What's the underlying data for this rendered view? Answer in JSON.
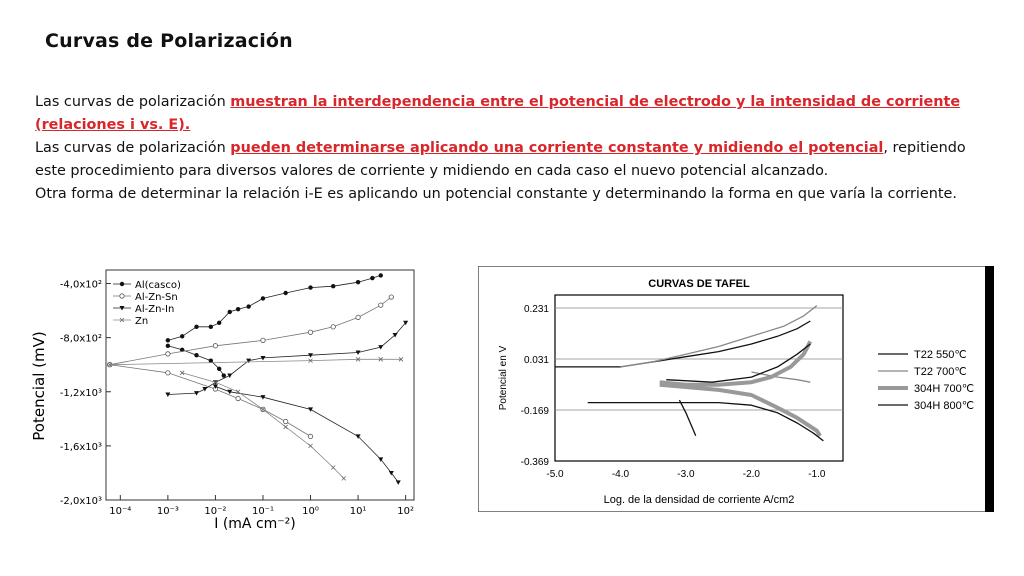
{
  "title": "Curvas de Polarización",
  "paragraph1": {
    "pre": "Las curvas de polarización ",
    "highlight": "muestran la interdependencia entre el potencial de electrodo y la intensidad de corriente (relaciones i vs. E)."
  },
  "paragraph2": {
    "highlight_space": " ",
    "pre": "Las curvas de polarización ",
    "highlight": "pueden determinarse aplicando una corriente constante y midiendo el potencial",
    "post": ", repitiendo este procedimiento para diversos valores de corriente y midiendo en cada caso el nuevo potencial alcanzado."
  },
  "paragraph3": "Otra forma de determinar la relación i-E es aplicando un potencial constante y determinando la forma en que varía la corriente.",
  "chart_data": [
    {
      "type": "line",
      "title": "",
      "xlabel": "I (mA cm⁻²)",
      "ylabel": "Potencial (mV)",
      "x_scale": "log",
      "xlim": [
        5e-05,
        150
      ],
      "ylim": [
        -2000,
        -300
      ],
      "x_ticks": [
        "10⁻⁴",
        "10⁻³",
        "10⁻²",
        "10⁻¹",
        "10⁰",
        "10¹",
        "10²"
      ],
      "y_ticks": [
        "-4,0x10²",
        "-8,0x10²",
        "-1,2x10³",
        "-1,6x10³",
        "-2,0x10³"
      ],
      "legend_position": "top-left",
      "series": [
        {
          "name": "Al(casco)",
          "marker": "filled-circle",
          "points": [
            [
              0.001,
              -820
            ],
            [
              0.002,
              -790
            ],
            [
              0.004,
              -720
            ],
            [
              0.008,
              -720
            ],
            [
              0.012,
              -690
            ],
            [
              0.02,
              -610
            ],
            [
              0.03,
              -590
            ],
            [
              0.05,
              -570
            ],
            [
              0.1,
              -510
            ],
            [
              0.3,
              -470
            ],
            [
              1,
              -430
            ],
            [
              3,
              -420
            ],
            [
              10,
              -390
            ],
            [
              20,
              -360
            ],
            [
              30,
              -340
            ]
          ],
          "cathodic": [
            [
              0.001,
              -860
            ],
            [
              0.002,
              -890
            ],
            [
              0.004,
              -930
            ],
            [
              0.008,
              -970
            ],
            [
              0.012,
              -1030
            ],
            [
              0.015,
              -1080
            ]
          ]
        },
        {
          "name": "Al-Zn-Sn",
          "marker": "open-circle",
          "points": [
            [
              6e-05,
              -1000
            ],
            [
              0.001,
              -920
            ],
            [
              0.01,
              -860
            ],
            [
              0.1,
              -820
            ],
            [
              1,
              -760
            ],
            [
              3,
              -720
            ],
            [
              10,
              -650
            ],
            [
              30,
              -560
            ],
            [
              50,
              -500
            ]
          ],
          "cathodic": [
            [
              6e-05,
              -1000
            ],
            [
              0.001,
              -1060
            ],
            [
              0.01,
              -1180
            ],
            [
              0.03,
              -1250
            ],
            [
              0.1,
              -1330
            ],
            [
              0.3,
              -1420
            ],
            [
              1,
              -1530
            ]
          ]
        },
        {
          "name": "Al-Zn-In",
          "marker": "filled-triangle-down",
          "points": [
            [
              0.001,
              -1220
            ],
            [
              0.004,
              -1210
            ],
            [
              0.006,
              -1180
            ],
            [
              0.01,
              -1130
            ],
            [
              0.02,
              -1080
            ],
            [
              0.05,
              -970
            ],
            [
              0.1,
              -950
            ],
            [
              1,
              -930
            ],
            [
              10,
              -910
            ],
            [
              30,
              -870
            ],
            [
              60,
              -780
            ],
            [
              100,
              -690
            ]
          ],
          "cathodic": [
            [
              0.01,
              -1160
            ],
            [
              0.02,
              -1200
            ],
            [
              0.1,
              -1240
            ],
            [
              1,
              -1330
            ],
            [
              10,
              -1530
            ],
            [
              30,
              -1700
            ],
            [
              50,
              -1800
            ],
            [
              70,
              -1870
            ]
          ]
        },
        {
          "name": "Zn",
          "marker": "x",
          "points": [
            [
              6e-05,
              -1000
            ],
            [
              1,
              -970
            ],
            [
              10,
              -960
            ],
            [
              30,
              -960
            ],
            [
              80,
              -960
            ]
          ],
          "cathodic": [
            [
              0.002,
              -1060
            ],
            [
              0.01,
              -1130
            ],
            [
              0.03,
              -1200
            ],
            [
              0.1,
              -1330
            ],
            [
              0.3,
              -1460
            ],
            [
              1,
              -1600
            ],
            [
              3,
              -1760
            ],
            [
              5,
              -1840
            ]
          ]
        }
      ]
    },
    {
      "type": "line",
      "title": "CURVAS DE TAFEL",
      "xlabel": "Log. de la densidad de corriente A/cm2",
      "ylabel": "Potencial en V",
      "xlim": [
        -5.0,
        -0.6
      ],
      "ylim": [
        -0.369,
        0.231
      ],
      "x_ticks": [
        "-5.0",
        "-4.0",
        "-3.0",
        "-2.0",
        "-1.0"
      ],
      "y_ticks": [
        "0.231",
        "0.031",
        "-0.169",
        "-0.369"
      ],
      "grid": true,
      "legend_position": "right",
      "series": [
        {
          "name": "T22 550℃",
          "style": "black-thin",
          "points": [
            [
              -5.0,
              0.0
            ],
            [
              -4.0,
              0.0
            ],
            [
              -3.5,
              0.02
            ],
            [
              -3.0,
              0.04
            ],
            [
              -2.5,
              0.06
            ],
            [
              -2.0,
              0.09
            ],
            [
              -1.6,
              0.12
            ],
            [
              -1.3,
              0.15
            ],
            [
              -1.1,
              0.18
            ]
          ]
        },
        {
          "name": "T22 700℃",
          "style": "gray-thin",
          "points": [
            [
              -4.0,
              0.0
            ],
            [
              -3.5,
              0.02
            ],
            [
              -3.0,
              0.05
            ],
            [
              -2.5,
              0.08
            ],
            [
              -2.0,
              0.12
            ],
            [
              -1.5,
              0.16
            ],
            [
              -1.2,
              0.2
            ],
            [
              -1.0,
              0.24
            ]
          ],
          "cathodic": [
            [
              -2.0,
              -0.02
            ],
            [
              -1.6,
              -0.04
            ],
            [
              -1.3,
              -0.05
            ],
            [
              -1.1,
              -0.06
            ]
          ]
        },
        {
          "name": "304H 700℃",
          "style": "gray-thick",
          "points": [
            [
              -3.4,
              -0.06
            ],
            [
              -3.0,
              -0.07
            ],
            [
              -2.5,
              -0.07
            ],
            [
              -2.0,
              -0.06
            ],
            [
              -1.7,
              -0.04
            ],
            [
              -1.4,
              0.0
            ],
            [
              -1.2,
              0.05
            ],
            [
              -1.1,
              0.1
            ]
          ],
          "cathodic": [
            [
              -3.4,
              -0.07
            ],
            [
              -2.5,
              -0.09
            ],
            [
              -2.0,
              -0.11
            ],
            [
              -1.6,
              -0.16
            ],
            [
              -1.3,
              -0.2
            ],
            [
              -1.0,
              -0.25
            ],
            [
              -0.95,
              -0.27
            ]
          ]
        },
        {
          "name": "304H 800℃",
          "style": "black-thin",
          "points": [
            [
              -3.3,
              -0.05
            ],
            [
              -2.6,
              -0.06
            ],
            [
              -2.0,
              -0.04
            ],
            [
              -1.6,
              0.0
            ],
            [
              -1.3,
              0.05
            ],
            [
              -1.1,
              0.09
            ]
          ],
          "cathodic": [
            [
              -4.5,
              -0.14
            ],
            [
              -3.5,
              -0.14
            ],
            [
              -3.0,
              -0.14
            ],
            [
              -2.5,
              -0.14
            ],
            [
              -2.0,
              -0.15
            ],
            [
              -1.6,
              -0.18
            ],
            [
              -1.3,
              -0.22
            ],
            [
              -1.05,
              -0.26
            ],
            [
              -0.9,
              -0.29
            ]
          ],
          "branch": [
            [
              -3.1,
              -0.13
            ],
            [
              -3.0,
              -0.18
            ],
            [
              -2.9,
              -0.24
            ],
            [
              -2.85,
              -0.27
            ]
          ]
        }
      ]
    }
  ]
}
